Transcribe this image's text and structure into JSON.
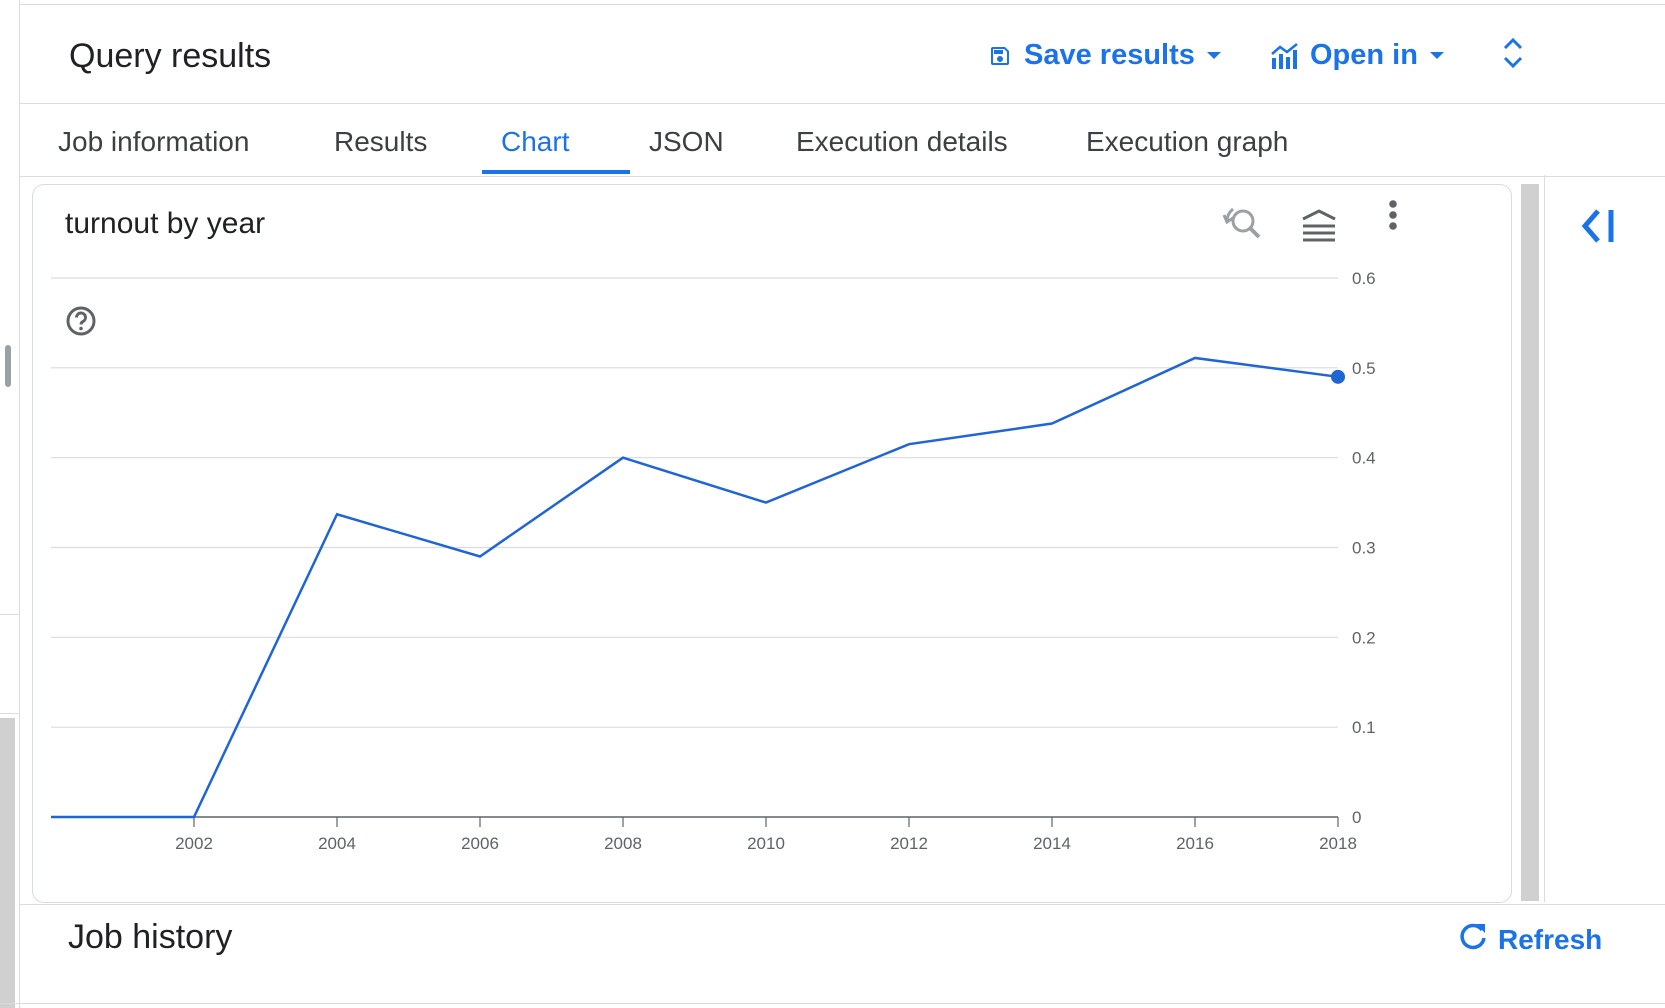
{
  "header": {
    "title": "Query results",
    "save_label": "Save results",
    "open_label": "Open in"
  },
  "tabs": [
    {
      "label": "Job information"
    },
    {
      "label": "Results"
    },
    {
      "label": "Chart"
    },
    {
      "label": "JSON"
    },
    {
      "label": "Execution details"
    },
    {
      "label": "Execution graph"
    }
  ],
  "active_tab": "Chart",
  "colors": {
    "accent": "#1a73e8",
    "line": "#1f65d6",
    "grid": "#dadce0",
    "tick_text": "#5f6368"
  },
  "icons": {
    "save": "save-icon",
    "open": "chart-icon",
    "expand": "unfold-icon",
    "zoom_reset": "zoom-reset-icon",
    "legend": "legend-icon",
    "more": "more-vert-icon",
    "help": "help-icon",
    "collapse": "collapse-panel-icon",
    "refresh": "refresh-icon"
  },
  "chart_data": {
    "type": "line",
    "title": "turnout by year",
    "xlabel": "",
    "ylabel": "",
    "x": [
      2000,
      2002,
      2004,
      2006,
      2008,
      2010,
      2012,
      2014,
      2016,
      2018
    ],
    "series": [
      {
        "values": [
          0,
          0,
          0.337,
          0.29,
          0.4,
          0.35,
          0.415,
          0.438,
          0.511,
          0.49
        ]
      }
    ],
    "xticks": [
      "2002",
      "2004",
      "2006",
      "2008",
      "2010",
      "2012",
      "2014",
      "2016",
      "2018"
    ],
    "yticks": [
      "0",
      "0.1",
      "0.2",
      "0.3",
      "0.4",
      "0.5",
      "0.6"
    ],
    "xlim": [
      2000,
      2018
    ],
    "ylim": [
      0,
      0.6
    ],
    "grid": true,
    "highlighted_point": {
      "x": 2018,
      "y": 0.49
    },
    "y_axis_position": "right"
  },
  "footer": {
    "job_history": "Job history",
    "refresh_label": "Refresh"
  }
}
